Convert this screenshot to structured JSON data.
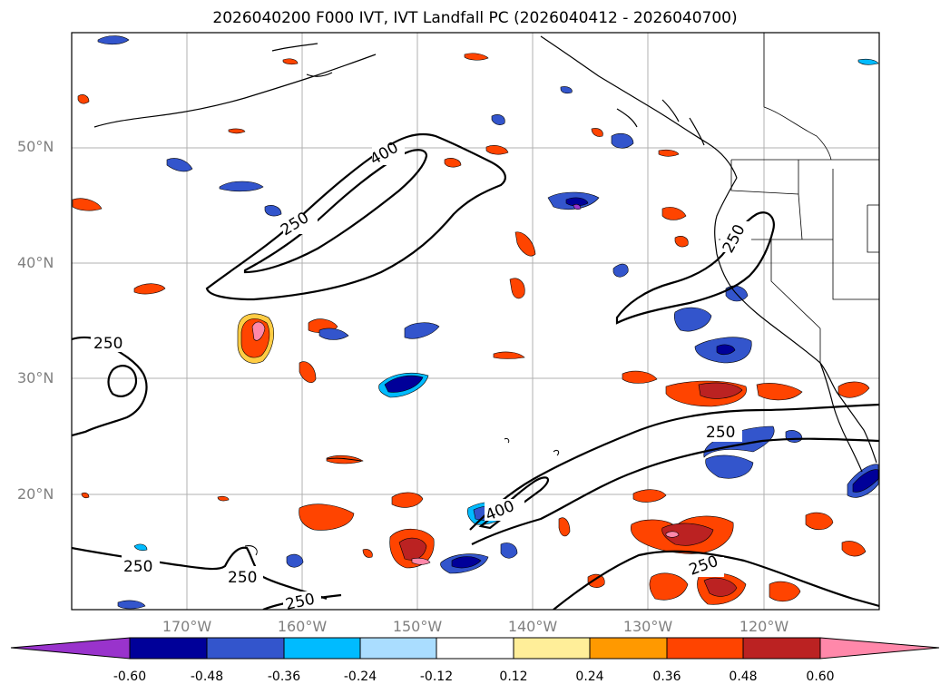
{
  "title": "2026040200 F000 IVT, IVT Landfall PC (2026040412 - 2026040700)",
  "lat_labels": [
    "50°N",
    "40°N",
    "30°N",
    "20°N"
  ],
  "lon_labels": [
    "170°W",
    "160°W",
    "150°W",
    "140°W",
    "130°W",
    "120°W"
  ],
  "contour_labels": [
    "400",
    "250",
    "250",
    "250",
    "250",
    "250",
    "250",
    "400",
    "250",
    "250"
  ],
  "colorbar": {
    "ticks": [
      "-0.60",
      "-0.48",
      "-0.36",
      "-0.24",
      "-0.12",
      "0.12",
      "0.24",
      "0.36",
      "0.48",
      "0.60"
    ],
    "colors": [
      "#9933cc",
      "#000099",
      "#3355cc",
      "#00bbff",
      "#aaddff",
      "#ffffff",
      "#ffee99",
      "#ff9900",
      "#ff4400",
      "#bb2222",
      "#ff88aa"
    ]
  },
  "chart_data": {
    "type": "map",
    "title": "2026040200 F000 IVT, IVT Landfall PC (2026040412 - 2026040700)",
    "lon_range": [
      -180,
      -110
    ],
    "lat_range": [
      10,
      60
    ],
    "contour_levels": [
      250,
      400
    ],
    "colorbar_levels": [
      -0.6,
      -0.48,
      -0.36,
      -0.24,
      -0.12,
      0.12,
      0.24,
      0.36,
      0.48,
      0.6
    ]
  }
}
